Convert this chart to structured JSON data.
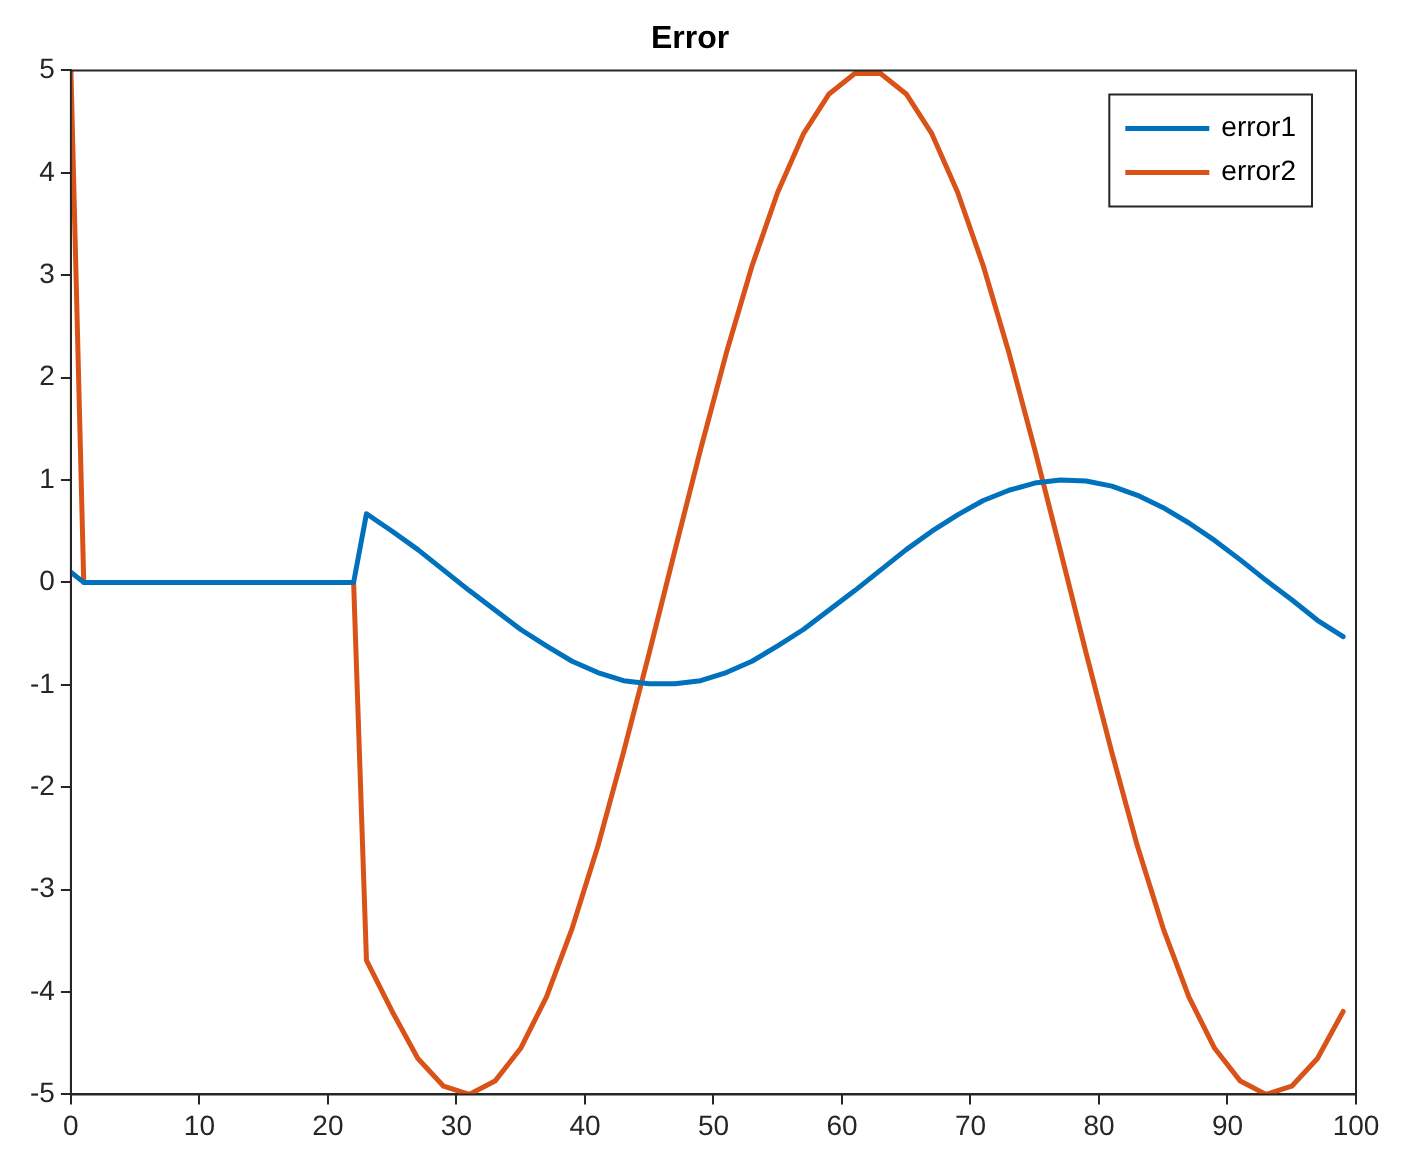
{
  "chart_data": {
    "type": "line",
    "title": "Error",
    "x": [
      0,
      1,
      22,
      23,
      25,
      27,
      29,
      31,
      33,
      35,
      37,
      39,
      41,
      43,
      45,
      47,
      49,
      51,
      53,
      55,
      57,
      59,
      61,
      63,
      65,
      67,
      69,
      71,
      73,
      75,
      77,
      79,
      81,
      83,
      85,
      87,
      89,
      91,
      93,
      95,
      97,
      99
    ],
    "series": [
      {
        "name": "error1",
        "color": "#0072bd",
        "values": [
          0.1,
          0,
          0,
          0.67,
          0.5,
          0.32,
          0.12,
          -0.08,
          -0.27,
          -0.46,
          -0.62,
          -0.77,
          -0.88,
          -0.96,
          -0.99,
          -0.99,
          -0.96,
          -0.88,
          -0.77,
          -0.62,
          -0.46,
          -0.27,
          -0.08,
          0.12,
          0.32,
          0.5,
          0.66,
          0.8,
          0.9,
          0.97,
          1,
          0.99,
          0.94,
          0.85,
          0.73,
          0.58,
          0.41,
          0.22,
          0.02,
          -0.17,
          -0.37,
          -0.53
        ]
      },
      {
        "name": "error2",
        "color": "#d95319",
        "values": [
          5,
          0,
          0,
          -3.69,
          -4.19,
          -4.65,
          -4.92,
          -5,
          -4.87,
          -4.55,
          -4.05,
          -3.38,
          -2.58,
          -1.66,
          -0.69,
          0.31,
          1.3,
          2.24,
          3.09,
          3.81,
          4.38,
          4.77,
          4.97,
          4.97,
          4.77,
          4.38,
          3.81,
          3.09,
          2.24,
          1.3,
          0.31,
          -0.69,
          -1.66,
          -2.58,
          -3.38,
          -4.05,
          -4.55,
          -4.87,
          -5,
          -4.92,
          -4.65,
          -4.19
        ]
      }
    ],
    "xlim": [
      0,
      100
    ],
    "xticks": [
      0,
      10,
      20,
      30,
      40,
      50,
      60,
      70,
      80,
      90,
      100
    ],
    "ylim": [
      -5,
      5
    ],
    "yticks": [
      -5,
      -4,
      -3,
      -2,
      -1,
      0,
      1,
      2,
      3,
      4,
      5
    ],
    "grid": false,
    "legend": "top right",
    "marker": "none",
    "line_style": "solid"
  }
}
